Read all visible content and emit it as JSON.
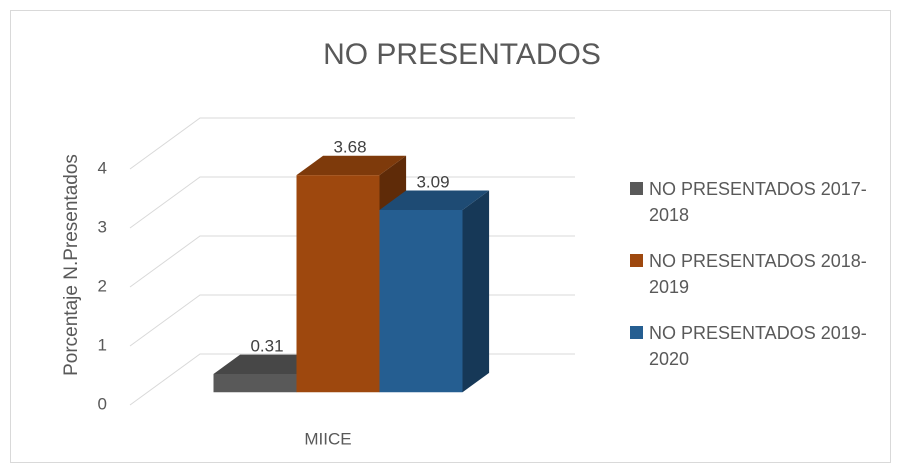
{
  "chart_data": {
    "type": "bar3d",
    "title": "NO PRESENTADOS",
    "y_label": "Porcentaje N.Presentados",
    "categories": [
      "MIICE"
    ],
    "series": [
      {
        "name": "NO PRESENTADOS 2017-2018",
        "color": "#595959",
        "values": [
          0.31
        ]
      },
      {
        "name": "NO PRESENTADOS 2018-2019",
        "color": "#9e480e",
        "values": [
          3.68
        ]
      },
      {
        "name": "NO PRESENTADOS 2019-2020",
        "color": "#255e91",
        "values": [
          3.09
        ]
      }
    ],
    "ylim": [
      0,
      4
    ],
    "yticks": [
      0,
      1,
      2,
      3,
      4
    ],
    "grid": true,
    "legend": "right"
  }
}
